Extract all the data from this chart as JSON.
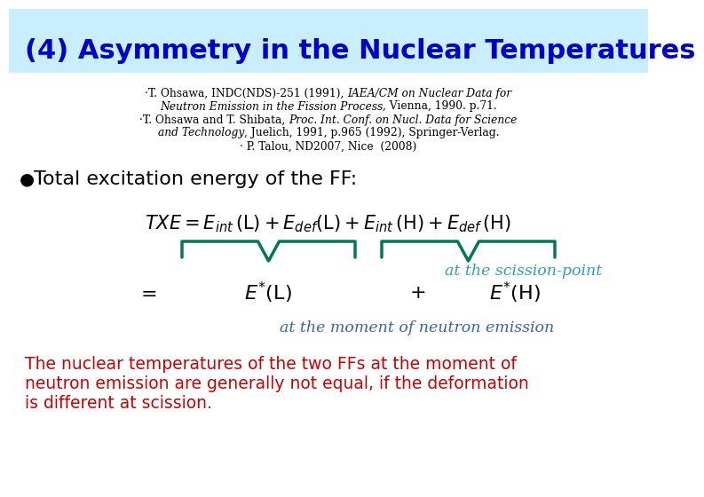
{
  "title": "(4) Asymmetry in the Nuclear Temperatures",
  "title_color": "#0000CC",
  "title_bg_color": "#C8EEFF",
  "scission_text": "at the scission-point",
  "scission_color": "#3399CC",
  "moment_text": "at the moment of neutron emission",
  "moment_color": "#3366AA",
  "bottom_text1": "The nuclear temperatures of the two FFs at the moment of",
  "bottom_text2": "neutron emission are generally not equal, if the deformation",
  "bottom_text3": "is different at scission.",
  "bottom_color": "#CC0000",
  "brace_color": "#007755",
  "bg_color": "#FFFFFF",
  "ref_lines": [
    [
      {
        "text": "·T. Ohsawa, INDC(NDS)-251 (1991), ",
        "italic": false
      },
      {
        "text": "IAEA/CM on Nuclear Data for",
        "italic": true
      }
    ],
    [
      {
        "text": "Neutron Emission in the Fission Process",
        "italic": true
      },
      {
        "text": ", Vienna, 1990. p.71.",
        "italic": false
      }
    ],
    [
      {
        "text": "·T. Ohsawa and T. Shibata, ",
        "italic": false
      },
      {
        "text": "Proc. Int. Conf. on Nucl. Data for Science",
        "italic": true
      }
    ],
    [
      {
        "text": "and Technology",
        "italic": true
      },
      {
        "text": ", Juelich, 1991, p.965 (1992), Springer-Verlag.",
        "italic": false
      }
    ],
    [
      {
        "text": "· P. Talou, ND2007, Nice  (2008)",
        "italic": false
      }
    ]
  ]
}
